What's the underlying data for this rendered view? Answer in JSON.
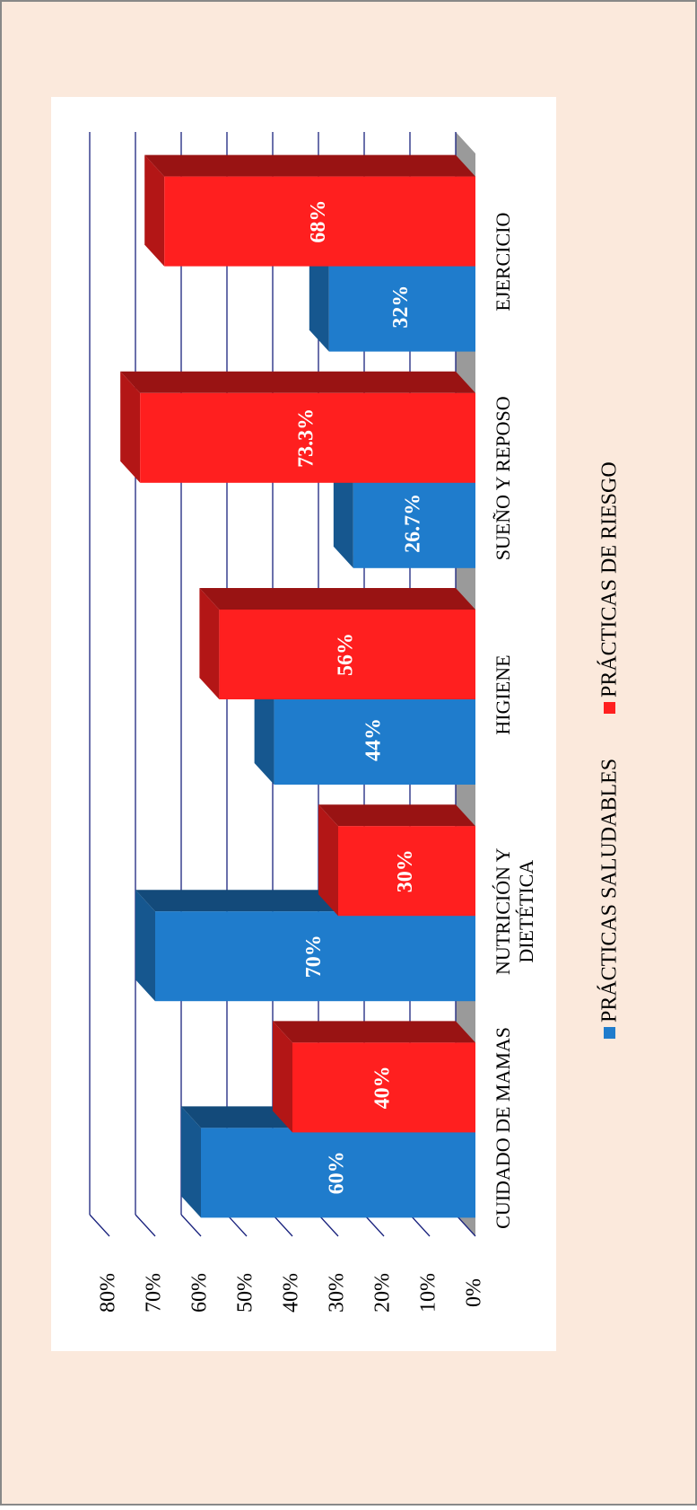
{
  "chart_data": {
    "type": "bar3d",
    "categories": [
      "CUIDADO DE MAMAS",
      "NUTRICIÓN Y DIETÉTICA",
      "HIGIENE",
      "SUEÑO Y REPOSO",
      "EJERCICIO"
    ],
    "series": [
      {
        "name": "PRÁCTICAS SALUDABLES",
        "color": "#1f7ccc",
        "values": [
          60,
          70,
          44,
          26.7,
          32
        ],
        "value_labels": [
          "60%",
          "70%",
          "44%",
          "26.7%",
          "32%"
        ]
      },
      {
        "name": "PRÁCTICAS DE RIESGO",
        "color": "#ff1f1f",
        "values": [
          40,
          30,
          56,
          73.3,
          68
        ],
        "value_labels": [
          "40%",
          "30%",
          "56%",
          "73.3%",
          "68%"
        ]
      }
    ],
    "ylim": [
      0,
      80
    ],
    "yticks": [
      {
        "value": 0,
        "label": "0%"
      },
      {
        "value": 10,
        "label": "10%"
      },
      {
        "value": 20,
        "label": "20%"
      },
      {
        "value": 30,
        "label": "30%"
      },
      {
        "value": 40,
        "label": "40%"
      },
      {
        "value": 50,
        "label": "50%"
      },
      {
        "value": 60,
        "label": "60%"
      },
      {
        "value": 70,
        "label": "70%"
      },
      {
        "value": 80,
        "label": "80%"
      }
    ],
    "grid": true,
    "legend": "bottom"
  }
}
